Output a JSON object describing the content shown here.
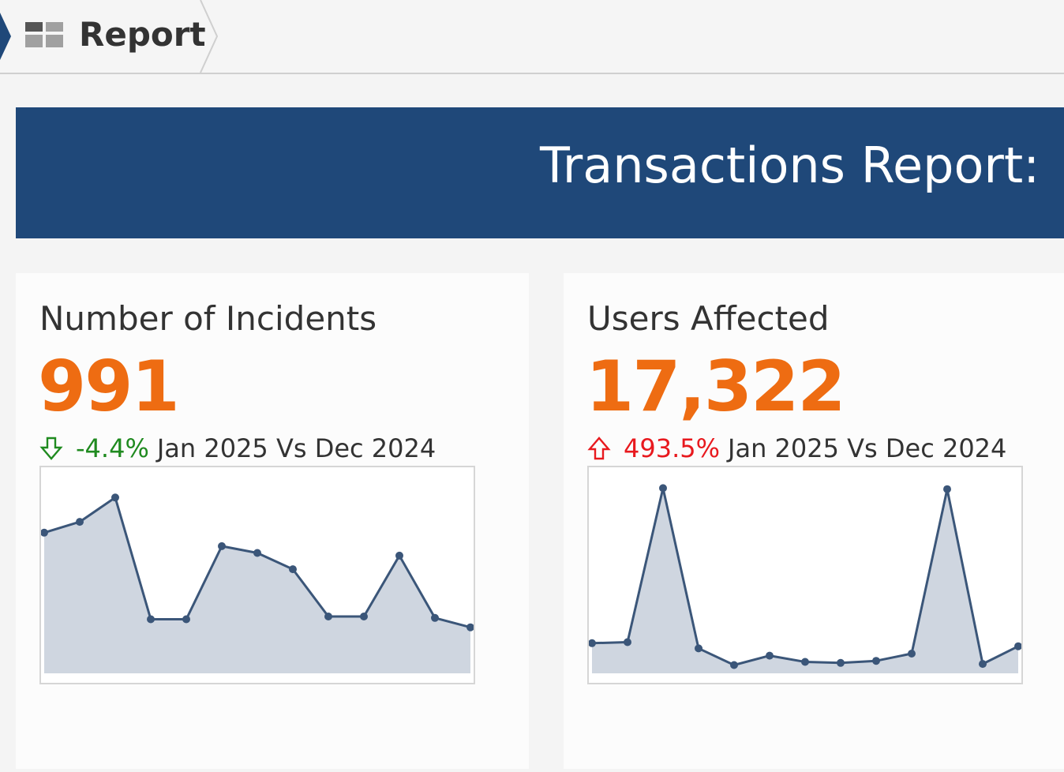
{
  "breadcrumb": {
    "icon": "report-grid-icon",
    "label": "Report"
  },
  "banner": {
    "title": "Transactions Report:"
  },
  "cards": [
    {
      "title": "Number of Incidents",
      "value": "991",
      "change_direction": "down",
      "change_icon": "arrow-down-outline-icon",
      "change_pct": "-4.4%",
      "period": "Jan 2025 Vs Dec 2024",
      "colors": {
        "value": "#ee6c12",
        "change": "#1f8a1f"
      }
    },
    {
      "title": "Users Affected",
      "value": "17,322",
      "change_direction": "up",
      "change_icon": "arrow-up-outline-icon",
      "change_pct": "493.5%",
      "period": "Jan 2025 Vs Dec 2024",
      "colors": {
        "value": "#ee6c12",
        "change": "#e8191e"
      }
    }
  ],
  "chart_data": [
    {
      "type": "area",
      "series": [
        {
          "values": [
            1440,
            1520,
            1700,
            800,
            800,
            1340,
            1290,
            1170,
            820,
            820,
            1270,
            810,
            740
          ]
        }
      ],
      "ylim": [
        400,
        1900
      ],
      "grid": false,
      "axes": false,
      "color": "#3b5679",
      "fill": "#cfd6e0"
    },
    {
      "type": "area",
      "series": [
        {
          "values": [
            2900,
            3000,
            17800,
            2400,
            800,
            1700,
            1100,
            1000,
            1200,
            1900,
            17700,
            900,
            2600
          ]
        }
      ],
      "ylim": [
        0,
        19500
      ],
      "grid": false,
      "axes": false,
      "color": "#3b5679",
      "fill": "#cfd6e0"
    }
  ]
}
